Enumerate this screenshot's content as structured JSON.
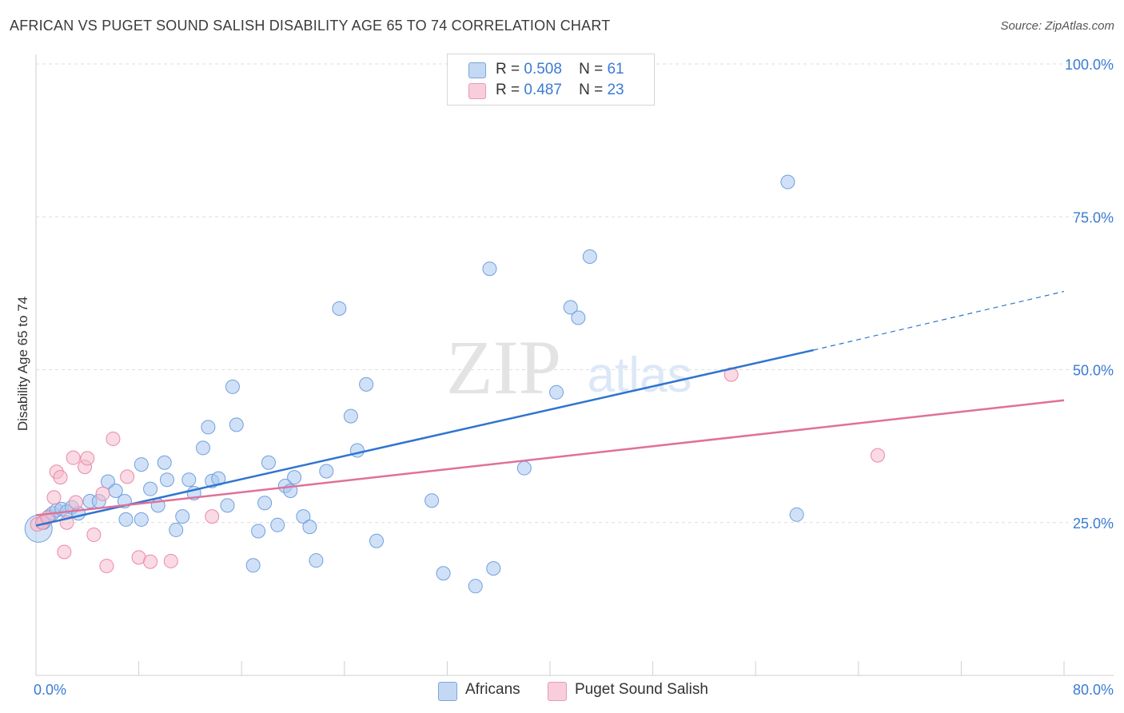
{
  "title": "AFRICAN VS PUGET SOUND SALISH DISABILITY AGE 65 TO 74 CORRELATION CHART",
  "source": "Source: ZipAtlas.com",
  "watermark": {
    "zip": "ZIP",
    "atlas": "atlas"
  },
  "legend": {
    "items": [
      {
        "r_label": "R =",
        "r_value": "0.508",
        "n_label": "N =",
        "n_value": "61"
      },
      {
        "r_label": "R =",
        "r_value": "0.487",
        "n_label": "N =",
        "n_value": "23"
      }
    ]
  },
  "bottom_legend": [
    "Africans",
    "Puget Sound Salish"
  ],
  "colors": {
    "blue_fill": "#a9c9f0",
    "blue_stroke": "#6fa0de",
    "blue_line": "#2f74d0",
    "pink_fill": "#f6bccd",
    "pink_stroke": "#e98aa6",
    "pink_line": "#e0709a",
    "tick_text": "#3a7bd5",
    "grid": "#dedede"
  },
  "chart_data": {
    "type": "scatter",
    "title": "AFRICAN VS PUGET SOUND SALISH DISABILITY AGE 65 TO 74 CORRELATION CHART",
    "xlabel": "",
    "ylabel": "Disability Age 65 to 74",
    "xlim": [
      0,
      80
    ],
    "ylim": [
      0,
      100
    ],
    "x_tick_labels": [
      {
        "value": 0,
        "label": "0.0%"
      },
      {
        "value": 80,
        "label": "80.0%"
      }
    ],
    "y_tick_labels": [
      {
        "value": 25,
        "label": "25.0%"
      },
      {
        "value": 50,
        "label": "50.0%"
      },
      {
        "value": 75,
        "label": "75.0%"
      },
      {
        "value": 100,
        "label": "100.0%"
      }
    ],
    "grid": true,
    "legend_position": "top-center",
    "series": [
      {
        "name": "Africans",
        "color": "#a9c9f0",
        "points": [
          [
            0.2,
            24.0
          ],
          [
            0.6,
            25.0
          ],
          [
            1.0,
            26.0
          ],
          [
            1.3,
            26.5
          ],
          [
            1.6,
            27.0
          ],
          [
            2.0,
            27.2
          ],
          [
            2.4,
            26.8
          ],
          [
            2.8,
            27.5
          ],
          [
            3.3,
            26.5
          ],
          [
            4.2,
            28.5
          ],
          [
            4.9,
            28.5
          ],
          [
            5.6,
            31.7
          ],
          [
            6.2,
            30.2
          ],
          [
            6.9,
            28.5
          ],
          [
            7.0,
            25.5
          ],
          [
            8.2,
            34.5
          ],
          [
            8.2,
            25.5
          ],
          [
            8.9,
            30.5
          ],
          [
            9.5,
            27.8
          ],
          [
            10.0,
            34.8
          ],
          [
            10.2,
            32.0
          ],
          [
            10.9,
            23.8
          ],
          [
            11.4,
            26.0
          ],
          [
            11.9,
            32.0
          ],
          [
            12.3,
            29.8
          ],
          [
            13.0,
            37.2
          ],
          [
            13.4,
            40.6
          ],
          [
            13.7,
            31.8
          ],
          [
            14.2,
            32.2
          ],
          [
            14.9,
            27.8
          ],
          [
            15.3,
            47.2
          ],
          [
            15.6,
            41.0
          ],
          [
            16.9,
            18.0
          ],
          [
            17.3,
            23.6
          ],
          [
            17.8,
            28.2
          ],
          [
            18.1,
            34.8
          ],
          [
            18.8,
            24.6
          ],
          [
            19.4,
            31.0
          ],
          [
            19.8,
            30.2
          ],
          [
            20.1,
            32.4
          ],
          [
            20.8,
            26.0
          ],
          [
            21.3,
            24.3
          ],
          [
            21.8,
            18.8
          ],
          [
            22.6,
            33.4
          ],
          [
            23.6,
            60.0
          ],
          [
            24.5,
            42.4
          ],
          [
            25.0,
            36.8
          ],
          [
            25.7,
            47.6
          ],
          [
            26.5,
            22.0
          ],
          [
            30.8,
            28.6
          ],
          [
            31.7,
            16.7
          ],
          [
            34.2,
            14.6
          ],
          [
            35.3,
            66.5
          ],
          [
            35.6,
            17.5
          ],
          [
            38.0,
            33.9
          ],
          [
            40.5,
            46.3
          ],
          [
            41.6,
            60.2
          ],
          [
            42.2,
            58.5
          ],
          [
            43.1,
            68.5
          ],
          [
            58.5,
            80.7
          ],
          [
            59.2,
            26.3
          ]
        ]
      },
      {
        "name": "Puget Sound Salish",
        "color": "#f6bccd",
        "points": [
          [
            0.1,
            24.7
          ],
          [
            0.5,
            25.0
          ],
          [
            0.9,
            25.8
          ],
          [
            1.4,
            29.1
          ],
          [
            1.6,
            33.3
          ],
          [
            1.9,
            32.4
          ],
          [
            2.2,
            20.2
          ],
          [
            2.4,
            25.0
          ],
          [
            2.9,
            35.6
          ],
          [
            3.1,
            28.3
          ],
          [
            3.8,
            34.1
          ],
          [
            4.0,
            35.5
          ],
          [
            4.5,
            23.0
          ],
          [
            5.2,
            29.7
          ],
          [
            5.5,
            17.9
          ],
          [
            6.0,
            38.7
          ],
          [
            7.1,
            32.5
          ],
          [
            8.0,
            19.3
          ],
          [
            8.9,
            18.6
          ],
          [
            10.5,
            18.7
          ],
          [
            13.7,
            26.0
          ],
          [
            54.1,
            49.2
          ],
          [
            65.5,
            36.0
          ]
        ]
      }
    ],
    "trend_lines": [
      {
        "series": "Africans",
        "solid_from": [
          0.0,
          24.5
        ],
        "solid_to": [
          60.5,
          53.2
        ],
        "dashed_to": [
          80.0,
          62.8
        ]
      },
      {
        "series": "Puget Sound Salish",
        "from": [
          0.0,
          26.2
        ],
        "to": [
          80.0,
          45.0
        ]
      }
    ]
  }
}
